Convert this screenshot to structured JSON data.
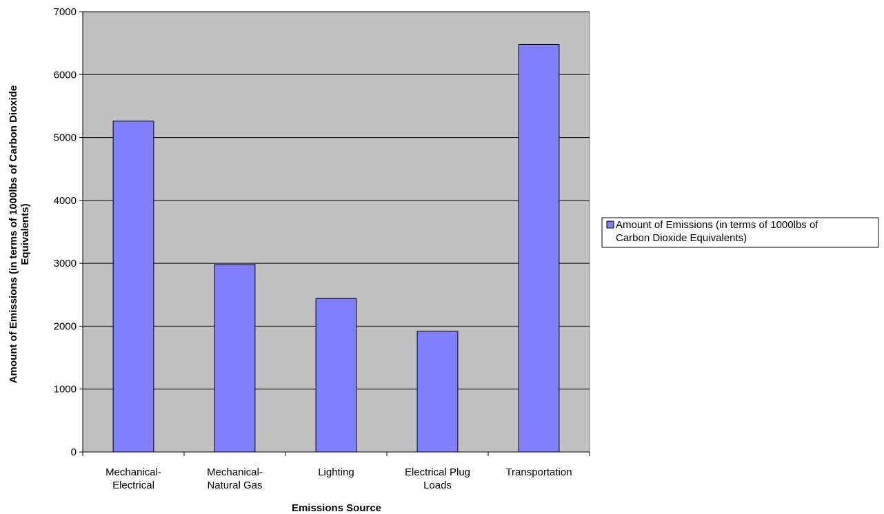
{
  "chart_data": {
    "type": "bar",
    "categories": [
      "Mechanical-Electrical",
      "Mechanical-Natural Gas",
      "Lighting",
      "Electrical Plug Loads",
      "Transportation"
    ],
    "category_label_lines": [
      [
        "Mechanical-",
        "Electrical"
      ],
      [
        "Mechanical-",
        "Natural Gas"
      ],
      [
        "Lighting"
      ],
      [
        "Electrical Plug",
        "Loads"
      ],
      [
        "Transportation"
      ]
    ],
    "series": [
      {
        "name": "Amount of Emissions (in terms of 1000lbs of Carbon Dioxide Equivalents)",
        "values": [
          5260,
          2980,
          2440,
          1920,
          6480
        ]
      }
    ],
    "legend_lines": [
      "Amount of Emissions (in terms of 1000lbs of",
      "Carbon Dioxide Equivalents)"
    ],
    "title": "",
    "xlabel": "Emissions Source",
    "ylabel_lines": [
      "Amount of Emissions (in terms of 1000lbs of Carbon Dioxide",
      "Equivalents)"
    ],
    "ylim": [
      0,
      7000
    ],
    "yticks": [
      "0",
      "1000",
      "2000",
      "3000",
      "4000",
      "5000",
      "6000",
      "7000"
    ],
    "grid": true,
    "legend_position": "right",
    "colors": {
      "bar": "#8080ff",
      "plot_bg": "#c0c0c0",
      "grid": "#000000"
    }
  }
}
